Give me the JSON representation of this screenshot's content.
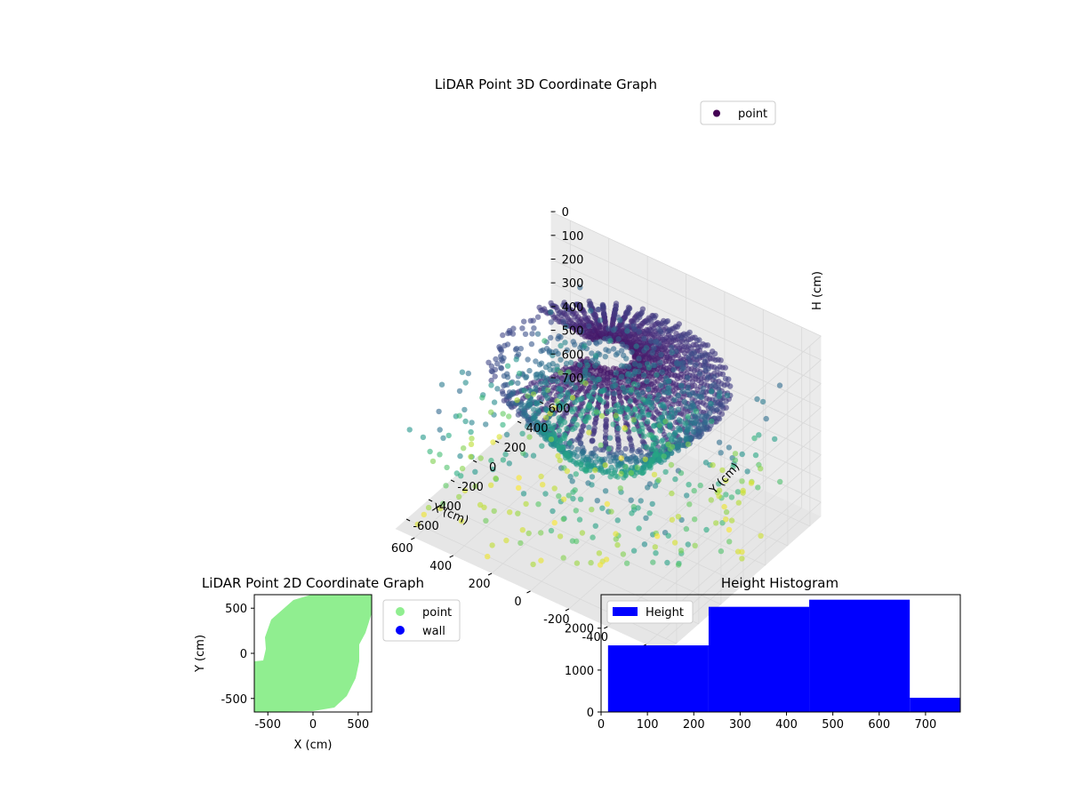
{
  "colors": {
    "viridis": [
      "#440154",
      "#472d7b",
      "#3b528b",
      "#2c728e",
      "#21918c",
      "#28ae80",
      "#5ec962",
      "#addc30",
      "#fde725"
    ],
    "point_2d": "#90ee90",
    "wall_2d": "#0000ff",
    "histogram": "#0000ff",
    "pane": "#f2f2f2",
    "grid": "#d9d9d9"
  },
  "chart_data": [
    {
      "type": "scatter",
      "title": "LiDAR Point 3D Coordinate Graph",
      "xlabel": "X (cm)",
      "ylabel": "Y (cm)",
      "zlabel": "H (cm)",
      "xlim": [
        -700,
        700
      ],
      "ylim": [
        -700,
        700
      ],
      "zlim": [
        0,
        760
      ],
      "z_inverted": true,
      "x_ticks": [
        "-600",
        "-400",
        "-200",
        "0",
        "200",
        "400",
        "600"
      ],
      "y_ticks": [
        "-600",
        "-400",
        "-200",
        "0",
        "200",
        "400",
        "600"
      ],
      "z_ticks": [
        "0",
        "100",
        "200",
        "300",
        "400",
        "500",
        "600",
        "700"
      ],
      "colormap": "viridis",
      "color_by": "height",
      "legend": {
        "entries": [
          "point"
        ],
        "position": "top-right"
      },
      "grid": true,
      "shape": "bowl-shaped dome of points, most dense near the top, with sparse scattered points toward the ground"
    },
    {
      "type": "scatter",
      "title": "LiDAR Point 2D Coordinate Graph",
      "xlabel": "X (cm)",
      "ylabel": "Y (cm)",
      "xlim": [
        -650,
        650
      ],
      "ylim": [
        -650,
        650
      ],
      "x_ticks": [
        "-500",
        "0",
        "500"
      ],
      "y_ticks": [
        "-500",
        "0",
        "500"
      ],
      "series": [
        {
          "name": "point",
          "color": "#90ee90"
        },
        {
          "name": "wall",
          "color": "#0000ff"
        }
      ],
      "legend": {
        "entries": [
          "point",
          "wall"
        ],
        "position": "outside-right"
      },
      "grid": false
    },
    {
      "type": "bar",
      "title": "Height Histogram",
      "bins": [
        {
          "from": 15,
          "to": 232,
          "count": 1590
        },
        {
          "from": 232,
          "to": 449,
          "count": 2510
        },
        {
          "from": 449,
          "to": 666,
          "count": 2680
        },
        {
          "from": 666,
          "to": 775,
          "count": 340
        }
      ],
      "xlim": [
        0,
        775
      ],
      "ylim": [
        0,
        2800
      ],
      "x_ticks": [
        "0",
        "100",
        "200",
        "300",
        "400",
        "500",
        "600",
        "700"
      ],
      "y_ticks": [
        "0",
        "1000",
        "2000"
      ],
      "legend": {
        "entries": [
          "Height"
        ],
        "position": "top-left"
      },
      "grid": false
    }
  ]
}
